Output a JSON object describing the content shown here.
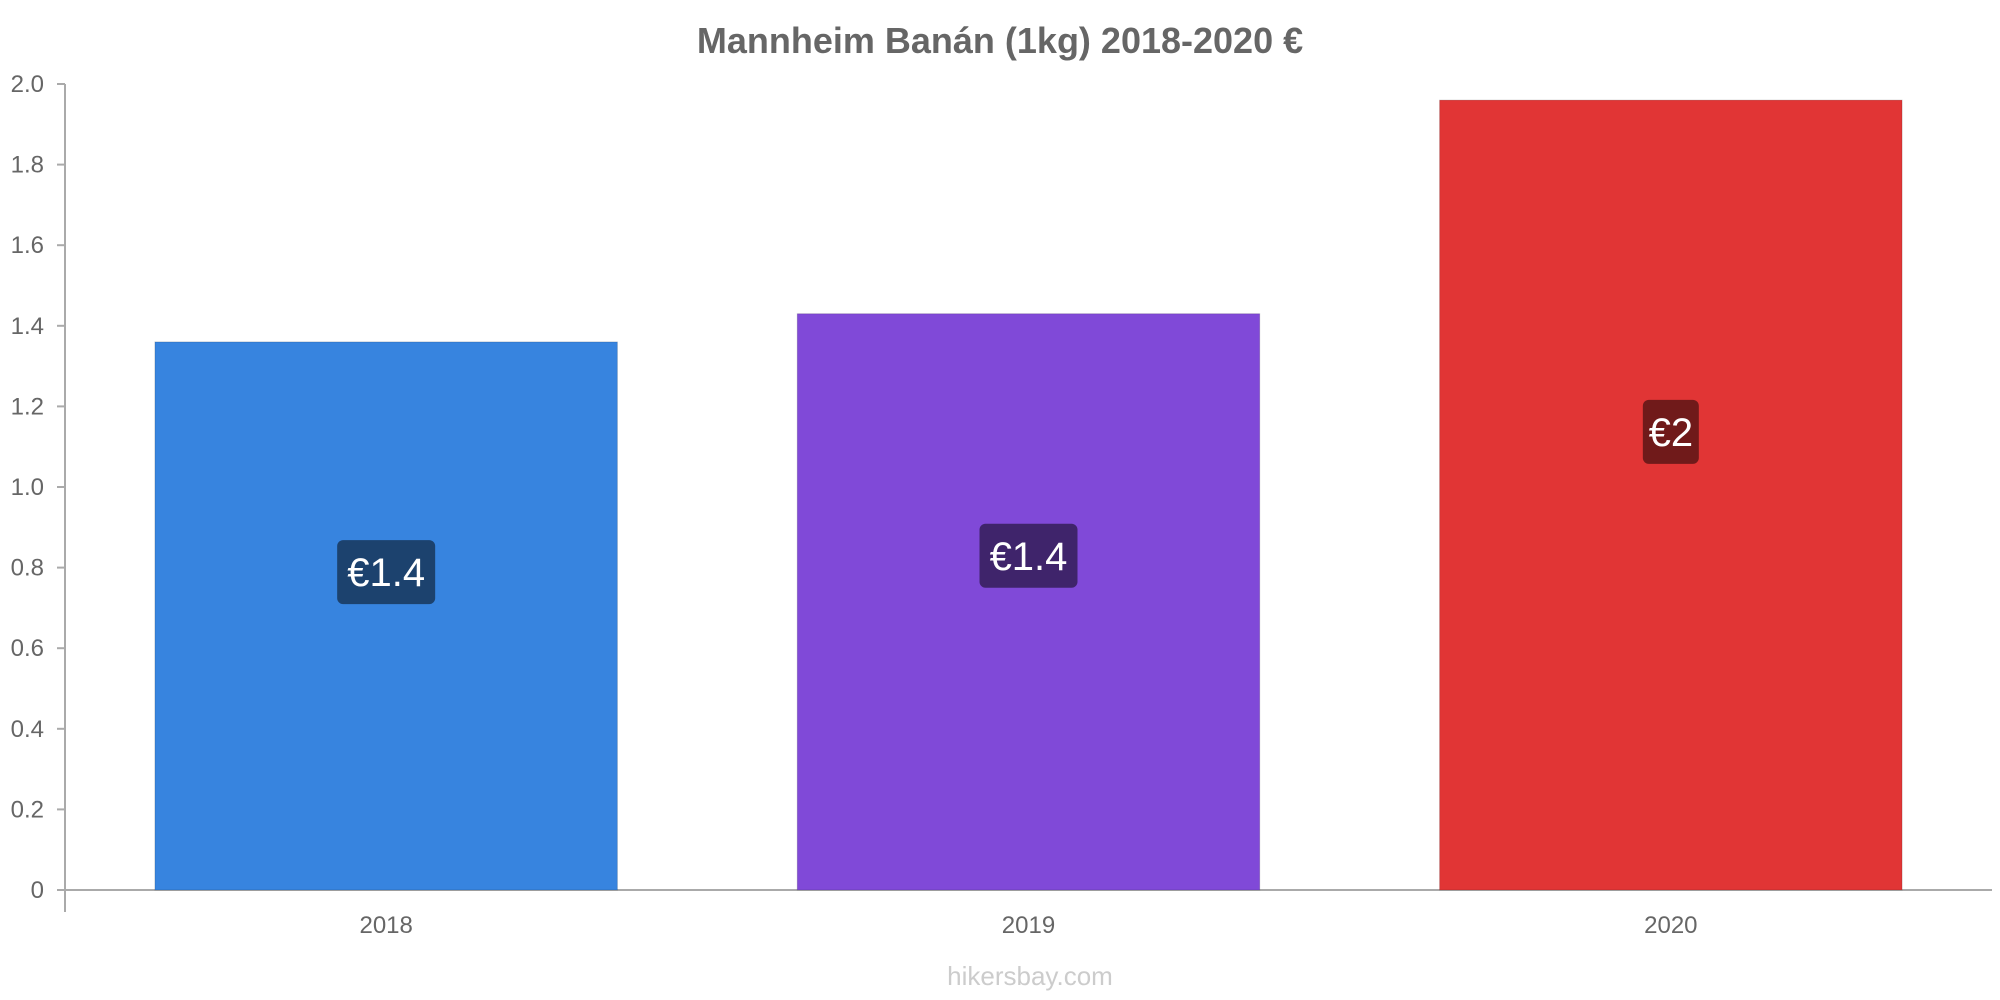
{
  "chart_data": {
    "type": "bar",
    "title": "Mannheim Banán (1kg) 2018-2020 €",
    "categories": [
      "2018",
      "2019",
      "2020"
    ],
    "values": [
      1.36,
      1.43,
      1.96
    ],
    "data_labels": [
      "€1.4",
      "€1.4",
      "€2"
    ],
    "colors": [
      "#3784df",
      "#8049d8",
      "#e13535"
    ],
    "label_bg_colors": [
      "#1c426e",
      "#3f246b",
      "#701a1a"
    ],
    "ylim": [
      0,
      2.0
    ],
    "y_ticks": [
      0,
      0.2,
      0.4,
      0.6,
      0.8,
      1.0,
      1.2,
      1.4,
      1.6,
      1.8,
      2.0
    ],
    "y_tick_labels": [
      "0",
      "0.2",
      "0.4",
      "0.6",
      "0.8",
      "1.0",
      "1.2",
      "1.4",
      "1.6",
      "1.8",
      "2.0"
    ],
    "xlabel": "",
    "ylabel": "",
    "grid": false,
    "legend": "none"
  },
  "watermark": "hikersbay.com"
}
